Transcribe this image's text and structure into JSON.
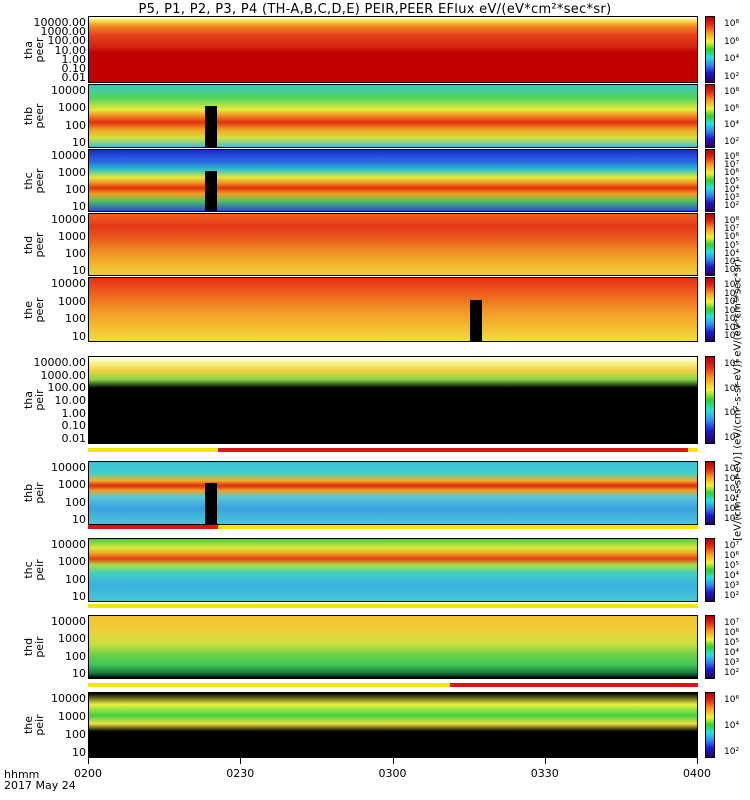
{
  "title": "P5, P1, P2, P3, P4 (TH-A,B,C,D,E) PEIR,PEER EFlux eV/(eV*cm²*sec*sr)",
  "colorbar_unit": "[eV/(cm²-s-sr-eV)] (eV/(cm²-s-sr-eV)) eV/(eV*cm²*sec*sr)",
  "x_axis": {
    "unit_label": "hhmm",
    "date_label": "2017 May 24",
    "ticks": [
      "0200",
      "0230",
      "0300",
      "0330",
      "0400"
    ]
  },
  "chart_data": [
    {
      "type": "heatmap",
      "name": "tha peer",
      "ylabel": "tha\npeer",
      "yticks": [
        "10000.00",
        "1000.00",
        "100.00",
        "10.00",
        "1.00",
        "0.10",
        "0.01"
      ],
      "colorbar_ticks": [
        "10⁸",
        "10⁶",
        "10⁴",
        "10²"
      ],
      "scale": "log"
    },
    {
      "type": "heatmap",
      "name": "thb peer",
      "ylabel": "thb\npeer",
      "yticks": [
        "10000",
        "1000",
        "100",
        "10"
      ],
      "colorbar_ticks": [
        "10⁸",
        "10⁶",
        "10⁴",
        "10²"
      ],
      "scale": "log"
    },
    {
      "type": "heatmap",
      "name": "thc peer",
      "ylabel": "thc\npeer",
      "yticks": [
        "10000",
        "1000",
        "100",
        "10"
      ],
      "colorbar_ticks": [
        "10⁸",
        "10⁷",
        "10⁶",
        "10⁵",
        "10⁴",
        "10³",
        "10²"
      ],
      "scale": "log"
    },
    {
      "type": "heatmap",
      "name": "thd peer",
      "ylabel": "thd\npeer",
      "yticks": [
        "10000",
        "1000",
        "100",
        "10"
      ],
      "colorbar_ticks": [
        "10⁸",
        "10⁷",
        "10⁶",
        "10⁵",
        "10⁴",
        "10³",
        "10²"
      ],
      "scale": "log"
    },
    {
      "type": "heatmap",
      "name": "the peer",
      "ylabel": "the\npeer",
      "yticks": [
        "10000",
        "1000",
        "100",
        "10"
      ],
      "colorbar_ticks": [
        "10⁸",
        "10⁷",
        "10⁶",
        "10⁵",
        "10⁴",
        "10³",
        "10²"
      ],
      "scale": "log"
    },
    {
      "type": "heatmap",
      "name": "tha peir",
      "ylabel": "tha\npeir",
      "yticks": [
        "10000.00",
        "1000.00",
        "100.00",
        "10.00",
        "1.00",
        "0.10",
        "0.01"
      ],
      "colorbar_ticks": [
        "10⁸",
        "10⁶",
        "10⁴",
        "10²"
      ],
      "scale": "log"
    },
    {
      "type": "heatmap",
      "name": "thb peir",
      "ylabel": "thb\npeir",
      "yticks": [
        "10000",
        "1000",
        "100",
        "10"
      ],
      "colorbar_ticks": [
        "10⁷",
        "10⁶",
        "10⁵",
        "10⁴",
        "10³",
        "10²"
      ],
      "scale": "log"
    },
    {
      "type": "heatmap",
      "name": "thc peir",
      "ylabel": "thc\npeir",
      "yticks": [
        "10000",
        "1000",
        "100",
        "10"
      ],
      "colorbar_ticks": [
        "10⁷",
        "10⁶",
        "10⁵",
        "10⁴",
        "10³",
        "10²"
      ],
      "scale": "log"
    },
    {
      "type": "heatmap",
      "name": "thd peir",
      "ylabel": "thd\npeir",
      "yticks": [
        "10000",
        "1000",
        "100",
        "10"
      ],
      "colorbar_ticks": [
        "10⁷",
        "10⁶",
        "10⁵",
        "10⁴",
        "10³",
        "10²"
      ],
      "scale": "log"
    },
    {
      "type": "heatmap",
      "name": "the peir",
      "ylabel": "the\npeir",
      "yticks": [
        "10000",
        "1000",
        "100",
        "10"
      ],
      "colorbar_ticks": [
        "10⁶",
        "10⁴",
        "10²"
      ],
      "scale": "log"
    }
  ]
}
